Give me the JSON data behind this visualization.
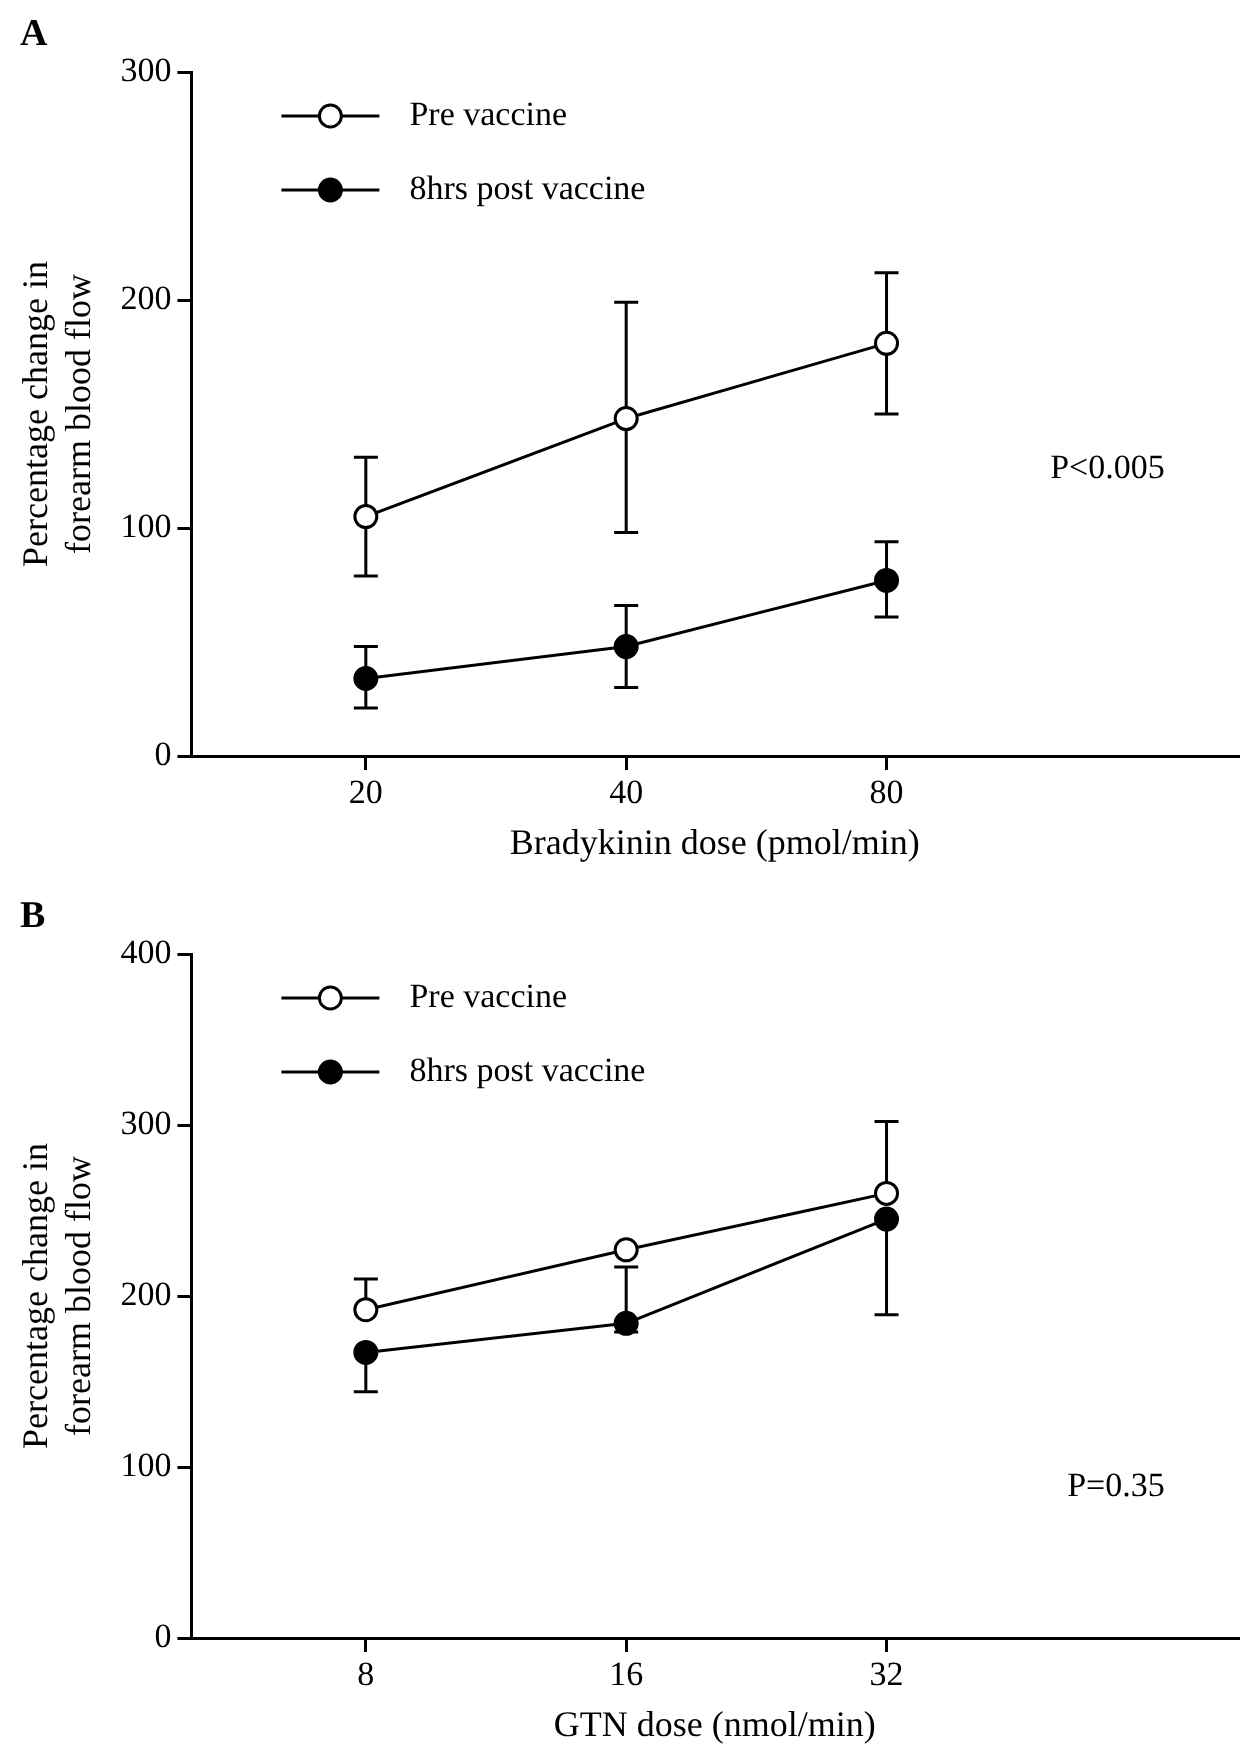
{
  "chart_data": [
    {
      "type": "line",
      "title": "A",
      "xlabel": "Bradykinin dose (pmol/min)",
      "ylabel": "Percentage change in\nforearm blood flow",
      "categories": [
        "20",
        "40",
        "80"
      ],
      "ylim": [
        0,
        300
      ],
      "yticks": [
        0,
        100,
        200,
        300
      ],
      "grid": false,
      "legend": "top left",
      "marker": "circle",
      "line_style": "solid",
      "series": [
        {
          "name": "Pre vaccine",
          "color": "#000000",
          "values": [
            105,
            148,
            181
          ],
          "errors": [
            [
              79,
              131
            ],
            [
              98,
              199
            ],
            [
              150,
              212
            ]
          ]
        },
        {
          "name": "8hrs post vaccine",
          "color": "#000000",
          "values": [
            34,
            48,
            77
          ],
          "errors": [
            [
              21,
              48
            ],
            [
              30,
              66
            ],
            [
              61,
              94
            ]
          ]
        }
      ],
      "annotations": [
        "P<0.005"
      ]
    },
    {
      "type": "line",
      "title": "B",
      "xlabel": "GTN dose (nmol/min)",
      "ylabel": "Percentage change in\nforearm blood flow",
      "categories": [
        "8",
        "16",
        "32"
      ],
      "ylim": [
        0,
        400
      ],
      "yticks": [
        0,
        100,
        200,
        300,
        400
      ],
      "grid": false,
      "legend": "top left",
      "marker": "circle",
      "line_style": "solid",
      "series": [
        {
          "name": "Pre vaccine",
          "color": "#000000",
          "values": [
            192,
            227,
            260
          ],
          "errors": [
            [
              192,
              210
            ],
            null,
            [
              260,
              302
            ]
          ]
        },
        {
          "name": "8hrs post vaccine",
          "color": "#000000",
          "values": [
            167,
            184,
            245
          ],
          "errors": [
            [
              144,
              167
            ],
            [
              179,
              217
            ],
            [
              189,
              245
            ]
          ]
        }
      ],
      "annotations": [
        "P=0.35"
      ]
    }
  ]
}
